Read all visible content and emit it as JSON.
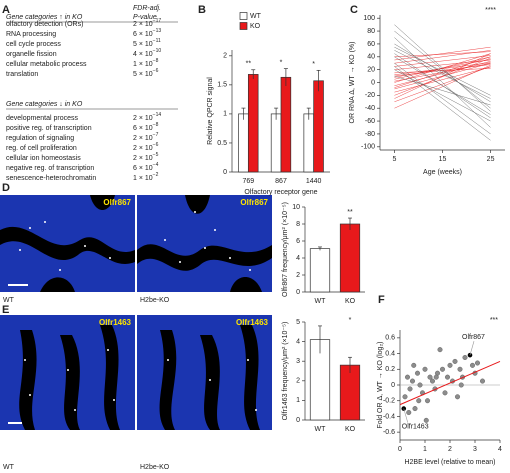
{
  "panel_labels": [
    "A",
    "B",
    "C",
    "D",
    "E",
    "F"
  ],
  "table": {
    "pvalue_header": [
      "FDR-adj.",
      "P-value"
    ],
    "up": {
      "header": "Gene categories ↑ in KO",
      "rows": [
        [
          "olfactory detection (ORs)",
          "2 × 10",
          "−17"
        ],
        [
          "RNA processing",
          "6 × 10",
          "−13"
        ],
        [
          "cell cycle process",
          "5 × 10",
          "−11"
        ],
        [
          "organelle fission",
          "4 × 10",
          "−10"
        ],
        [
          "cellular metabolic process",
          "1 × 10",
          "−8"
        ],
        [
          "translation",
          "5 × 10",
          "−6"
        ]
      ]
    },
    "down": {
      "header": "Gene categories ↓ in KO",
      "rows": [
        [
          "developmental process",
          "2 × 10",
          "−14"
        ],
        [
          "positive reg. of transcription",
          "6 × 10",
          "−8"
        ],
        [
          "regulation of signaling",
          "2 × 10",
          "−7"
        ],
        [
          "reg. of cell proliferation",
          "2 × 10",
          "−6"
        ],
        [
          "cellular ion homeostasis",
          "2 × 10",
          "−5"
        ],
        [
          "negative reg. of transcription",
          "6 × 10",
          "−4"
        ],
        [
          "senescence-heterochromatin",
          "1 × 10",
          "−2"
        ]
      ]
    }
  },
  "micrographs": [
    {
      "gene": "Olfr867",
      "wt": "WT",
      "ko": "H2be-KO"
    },
    {
      "gene": "Olfr1463",
      "wt": "WT",
      "ko": "H2be-KO"
    }
  ],
  "chart_data": [
    {
      "type": "bar",
      "y_label": "Relative QPCR signal",
      "x_label": "Olfactory receptor gene",
      "categories": [
        "769",
        "867",
        "1440"
      ],
      "series": [
        {
          "name": "WT",
          "color": "#ffffff",
          "values": [
            1,
            1,
            1
          ],
          "errors": [
            0.1,
            0.1,
            0.1
          ]
        },
        {
          "name": "KO",
          "color": "#e8191b",
          "values": [
            1.68,
            1.63,
            1.57
          ],
          "errors": [
            0.08,
            0.15,
            0.18
          ]
        }
      ],
      "annotations": [
        "**",
        "*",
        "*"
      ],
      "ylim": [
        0,
        2.1
      ],
      "yticks": [
        0,
        0.5,
        1,
        1.5,
        2
      ]
    },
    {
      "type": "line",
      "y_label": "OR RNA Δ, WT → KO (%)",
      "x_label": "Age (weeks)",
      "x": [
        5,
        25
      ],
      "xlim": [
        2,
        28
      ],
      "xticks": [
        5,
        15,
        25
      ],
      "ylim": [
        -105,
        105
      ],
      "yticks": [
        -100,
        -80,
        -60,
        -40,
        -20,
        0,
        20,
        40,
        60,
        80,
        100
      ],
      "annotation": "****",
      "series": [
        {
          "color": "#e8191b",
          "values": [
            -10,
            30
          ]
        },
        {
          "color": "#e8191b",
          "values": [
            5,
            40
          ]
        },
        {
          "color": "#e8191b",
          "values": [
            20,
            35
          ]
        },
        {
          "color": "#e8191b",
          "values": [
            -30,
            25
          ]
        },
        {
          "color": "#e8191b",
          "values": [
            0,
            45
          ]
        },
        {
          "color": "#e8191b",
          "values": [
            10,
            28
          ]
        },
        {
          "color": "#e8191b",
          "values": [
            -20,
            38
          ]
        },
        {
          "color": "#e8191b",
          "values": [
            30,
            50
          ]
        },
        {
          "color": "#e8191b",
          "values": [
            15,
            22
          ]
        },
        {
          "color": "#e8191b",
          "values": [
            -5,
            33
          ]
        },
        {
          "color": "#e8191b",
          "values": [
            40,
            48
          ]
        },
        {
          "color": "#e8191b",
          "values": [
            -40,
            27
          ]
        },
        {
          "color": "#e8191b",
          "values": [
            25,
            42
          ]
        },
        {
          "color": "#e8191b",
          "values": [
            8,
            36
          ]
        },
        {
          "color": "#e8191b",
          "values": [
            -15,
            24
          ]
        },
        {
          "color": "#e8191b",
          "values": [
            2,
            30
          ]
        },
        {
          "color": "#e8191b",
          "values": [
            35,
            55
          ]
        },
        {
          "color": "#e8191b",
          "values": [
            -25,
            45
          ]
        },
        {
          "color": "#e8191b",
          "values": [
            12,
            31
          ]
        },
        {
          "color": "#e8191b",
          "values": [
            -8,
            40
          ]
        },
        {
          "color": "#555555",
          "values": [
            60,
            -30
          ]
        },
        {
          "color": "#555555",
          "values": [
            40,
            -50
          ]
        },
        {
          "color": "#555555",
          "values": [
            80,
            -40
          ]
        },
        {
          "color": "#555555",
          "values": [
            20,
            -60
          ]
        },
        {
          "color": "#555555",
          "values": [
            50,
            -25
          ]
        },
        {
          "color": "#555555",
          "values": [
            30,
            -80
          ]
        },
        {
          "color": "#555555",
          "values": [
            90,
            -45
          ]
        },
        {
          "color": "#555555",
          "values": [
            10,
            -35
          ]
        },
        {
          "color": "#555555",
          "values": [
            70,
            -70
          ]
        },
        {
          "color": "#555555",
          "values": [
            45,
            -55
          ]
        },
        {
          "color": "#555555",
          "values": [
            25,
            -90
          ]
        },
        {
          "color": "#555555",
          "values": [
            55,
            -20
          ]
        }
      ]
    },
    {
      "type": "bar",
      "y_label": "Olfr867 frequency/μm² (×10⁻⁵)",
      "categories": [
        "WT",
        "KO"
      ],
      "values": [
        5.1,
        8.0
      ],
      "errors": [
        0.2,
        0.7
      ],
      "colors": [
        "#ffffff",
        "#e8191b"
      ],
      "annotation": "**",
      "ylim": [
        0,
        10
      ],
      "yticks": [
        0,
        2,
        4,
        6,
        8,
        10
      ]
    },
    {
      "type": "bar",
      "y_label": "Olfr1463 frequency/μm² (×10⁻⁵)",
      "categories": [
        "WT",
        "KO"
      ],
      "values": [
        4.1,
        2.8
      ],
      "errors": [
        0.7,
        0.4
      ],
      "colors": [
        "#ffffff",
        "#e8191b"
      ],
      "annotation": "*",
      "ylim": [
        0,
        5
      ],
      "yticks": [
        0,
        1,
        2,
        3,
        4,
        5
      ]
    },
    {
      "type": "scatter",
      "x_label": "H2BE level (relative to mean)",
      "y_label": "Fold OR Δ, WT → KO (log₂)",
      "xlim": [
        0,
        4
      ],
      "xticks": [
        0,
        1,
        2,
        3,
        4
      ],
      "ylim": [
        -0.7,
        0.7
      ],
      "yticks": [
        -0.6,
        -0.4,
        -0.2,
        0,
        0.2,
        0.4,
        0.6
      ],
      "color": "#8c8c8c",
      "annotation": "***",
      "x": [
        0.2,
        0.3,
        0.4,
        0.5,
        0.6,
        0.7,
        0.8,
        0.9,
        1.0,
        1.1,
        1.2,
        1.3,
        1.4,
        1.5,
        1.6,
        1.7,
        1.8,
        1.9,
        2.0,
        2.1,
        2.2,
        2.3,
        2.4,
        2.5,
        2.6,
        2.9,
        3.0,
        3.1,
        3.3,
        0.35,
        0.55,
        1.05,
        1.45,
        2.45,
        0.75
      ],
      "y": [
        -0.15,
        0.1,
        -0.05,
        0.05,
        -0.3,
        0.15,
        0.0,
        -0.1,
        0.2,
        -0.2,
        0.1,
        0.05,
        -0.05,
        0.15,
        0.45,
        0.2,
        -0.1,
        0.1,
        0.25,
        0.05,
        0.3,
        -0.15,
        0.2,
        0.1,
        0.35,
        0.25,
        0.15,
        0.28,
        0.05,
        -0.35,
        0.25,
        -0.45,
        0.1,
        0.0,
        -0.2
      ],
      "trend": {
        "color": "#e8191b",
        "x": [
          0,
          4
        ],
        "y": [
          -0.25,
          0.3
        ]
      },
      "highlights": [
        {
          "label": "Olfr867",
          "x": 2.8,
          "y": 0.38
        },
        {
          "label": "Olfr1463",
          "x": 0.15,
          "y": -0.3
        }
      ]
    }
  ]
}
